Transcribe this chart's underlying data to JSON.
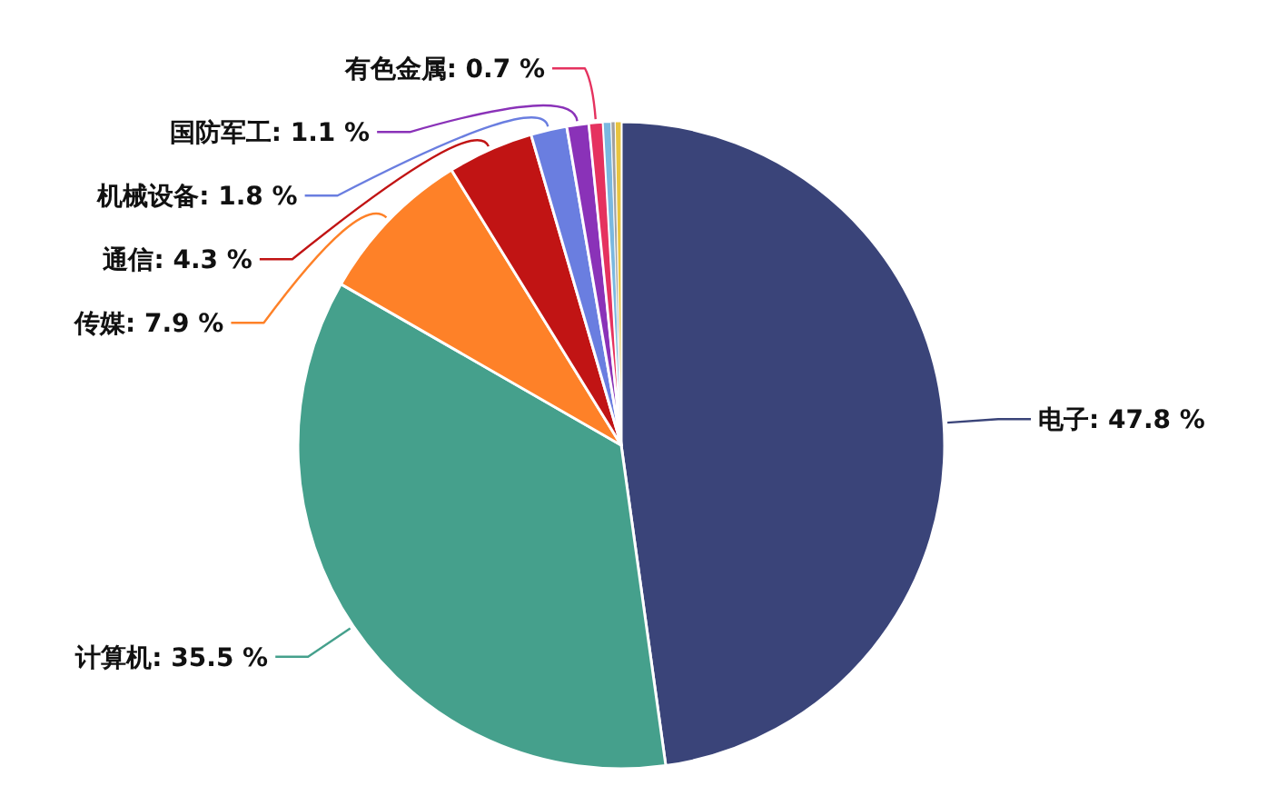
{
  "chart_data": {
    "type": "pie",
    "categories": [
      "电子",
      "计算机",
      "传媒",
      "通信",
      "机械设备",
      "国防军工",
      "有色金属",
      null,
      null,
      null
    ],
    "values": [
      47.8,
      35.5,
      7.9,
      4.3,
      1.8,
      1.1,
      0.7,
      0.4,
      0.2,
      0.3
    ],
    "value_labels": [
      "47.8 %",
      "35.5 %",
      "7.9 %",
      "4.3 %",
      "1.8 %",
      "1.1 %",
      "0.7 %",
      null,
      null,
      null
    ],
    "colors": [
      "#3a4479",
      "#45a08c",
      "#fe8128",
      "#c11414",
      "#6a7ee0",
      "#8a32b8",
      "#e5325f",
      "#7ab8e0",
      "#a0a0a0",
      "#e8c440"
    ]
  }
}
